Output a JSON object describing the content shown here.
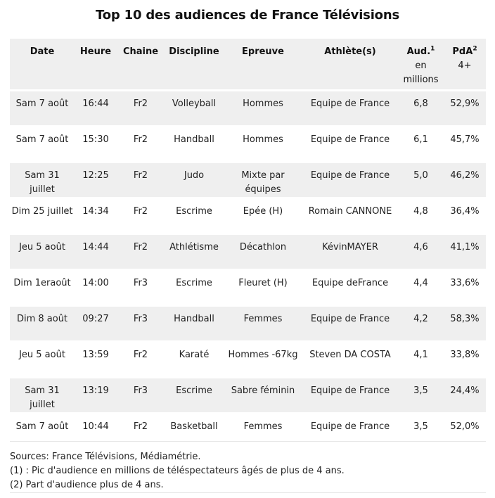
{
  "title": "Top 10 des audiences de France Télévisions",
  "columns": {
    "date": "Date",
    "heure": "Heure",
    "chaine": "Chaine",
    "discipline": "Discipline",
    "epreuve": "Epreuve",
    "athletes": "Athlète(s)",
    "aud": "Aud.",
    "aud_sup": "1",
    "aud_sub": "en millions",
    "pda": "PdA",
    "pda_sup": "2",
    "pda_sub": "4+"
  },
  "rows": [
    {
      "date": "Sam 7 août",
      "heure": "16:44",
      "chaine": "Fr2",
      "discipline": "Volleyball",
      "epreuve": "Hommes",
      "athletes": "Equipe de France",
      "aud": "6,8",
      "pda": "52,9%"
    },
    {
      "date": "Sam 7 août",
      "heure": "15:30",
      "chaine": "Fr2",
      "discipline": "Handball",
      "epreuve": "Hommes",
      "athletes": "Equipe de France",
      "aud": "6,1",
      "pda": "45,7%"
    },
    {
      "date": "Sam 31 juillet",
      "heure": "12:25",
      "chaine": "Fr2",
      "discipline": "Judo",
      "epreuve": "Mixte par équipes",
      "athletes": "Equipe de France",
      "aud": "5,0",
      "pda": "46,2%"
    },
    {
      "date": "Dim 25 juillet",
      "heure": "14:34",
      "chaine": "Fr2",
      "discipline": "Escrime",
      "epreuve": "Epée (H)",
      "athletes": "Romain CANNONE",
      "aud": "4,8",
      "pda": "36,4%"
    },
    {
      "date": "Jeu 5 août",
      "heure": "14:44",
      "chaine": "Fr2",
      "discipline": "Athlétisme",
      "epreuve": "Décathlon",
      "athletes": "KévinMAYER",
      "aud": "4,6",
      "pda": "41,1%"
    },
    {
      "date": "Dim 1eraoût",
      "heure": "14:00",
      "chaine": "Fr3",
      "discipline": "Escrime",
      "epreuve": "Fleuret (H)",
      "athletes": "Equipe deFrance",
      "aud": "4,4",
      "pda": "33,6%"
    },
    {
      "date": "Dim 8 août",
      "heure": "09:27",
      "chaine": "Fr3",
      "discipline": "Handball",
      "epreuve": "Femmes",
      "athletes": "Equipe de France",
      "aud": "4,2",
      "pda": "58,3%"
    },
    {
      "date": "Jeu 5 août",
      "heure": "13:59",
      "chaine": "Fr2",
      "discipline": "Karaté",
      "epreuve": "Hommes -67kg",
      "athletes": "Steven DA COSTA",
      "aud": "4,1",
      "pda": "33,8%"
    },
    {
      "date": "Sam 31 juillet",
      "heure": "13:19",
      "chaine": "Fr3",
      "discipline": "Escrime",
      "epreuve": "Sabre féminin",
      "athletes": "Equipe de France",
      "aud": "3,5",
      "pda": "24,4%"
    },
    {
      "date": "Sam 7 août",
      "heure": "10:44",
      "chaine": "Fr2",
      "discipline": "Basketball",
      "epreuve": "Femmes",
      "athletes": "Equipe de France",
      "aud": "3,5",
      "pda": "52,0%"
    }
  ],
  "notes": {
    "sources": "Sources: France Télévisions, Médiamétrie.",
    "note1": "(1) : Pic d'audience en millions de téléspectateurs âgés de plus de 4 ans.",
    "note2": "(2) Part d'audience plus de 4 ans."
  },
  "colors": {
    "row_alt": "#efefef",
    "row_plain": "#ffffff"
  }
}
